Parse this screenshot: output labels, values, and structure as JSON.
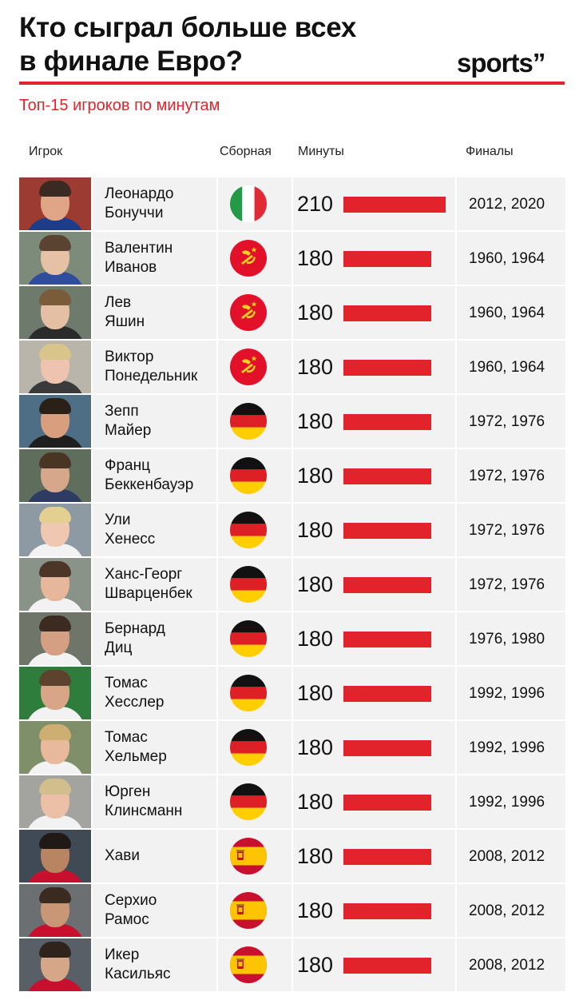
{
  "title_line1": "Кто сыграл больше всех",
  "title_line2": "в финале Евро?",
  "brand": "sports”",
  "subtitle": "Топ-15 игроков по минутам",
  "columns": {
    "player": "Игрок",
    "team": "Сборная",
    "minutes": "Минуты",
    "finals": "Финалы"
  },
  "colors": {
    "accent": "#e3232b"
  },
  "chart_data": {
    "type": "table",
    "title": "Кто сыграл больше всех в финале Евро?",
    "subtitle": "Топ-15 игроков по минутам",
    "columns": [
      "Игрок",
      "Сборная",
      "Минуты",
      "Финалы"
    ],
    "xlim": [
      0,
      210
    ],
    "rows": [
      {
        "first": "Леонардо",
        "last": "Бонуччи",
        "team": "italy",
        "minutes": 210,
        "finals": "2012, 2020"
      },
      {
        "first": "Валентин",
        "last": "Иванов",
        "team": "ussr",
        "minutes": 180,
        "finals": "1960, 1964"
      },
      {
        "first": "Лев",
        "last": "Яшин",
        "team": "ussr",
        "minutes": 180,
        "finals": "1960, 1964"
      },
      {
        "first": "Виктор",
        "last": "Понедельник",
        "team": "ussr",
        "minutes": 180,
        "finals": "1960, 1964"
      },
      {
        "first": "Зепп",
        "last": "Майер",
        "team": "germany",
        "minutes": 180,
        "finals": "1972, 1976"
      },
      {
        "first": "Франц",
        "last": "Беккенбауэр",
        "team": "germany",
        "minutes": 180,
        "finals": "1972, 1976"
      },
      {
        "first": "Ули",
        "last": "Хенесс",
        "team": "germany",
        "minutes": 180,
        "finals": "1972, 1976"
      },
      {
        "first": "Ханс-Георг",
        "last": "Шварценбек",
        "team": "germany",
        "minutes": 180,
        "finals": "1972, 1976"
      },
      {
        "first": "Бернард",
        "last": "Диц",
        "team": "germany",
        "minutes": 180,
        "finals": "1976, 1980"
      },
      {
        "first": "Томас",
        "last": "Хесслер",
        "team": "germany",
        "minutes": 180,
        "finals": "1992, 1996"
      },
      {
        "first": "Томас",
        "last": "Хельмер",
        "team": "germany",
        "minutes": 180,
        "finals": "1992, 1996"
      },
      {
        "first": "Юрген",
        "last": "Клинсманн",
        "team": "germany",
        "minutes": 180,
        "finals": "1992, 1996"
      },
      {
        "first": "Хави",
        "last": "",
        "team": "spain",
        "minutes": 180,
        "finals": "2008, 2012"
      },
      {
        "first": "Серхио",
        "last": "Рамос",
        "team": "spain",
        "minutes": 180,
        "finals": "2008, 2012"
      },
      {
        "first": "Икер",
        "last": "Касильяс",
        "team": "spain",
        "minutes": 180,
        "finals": "2008, 2012"
      }
    ]
  }
}
